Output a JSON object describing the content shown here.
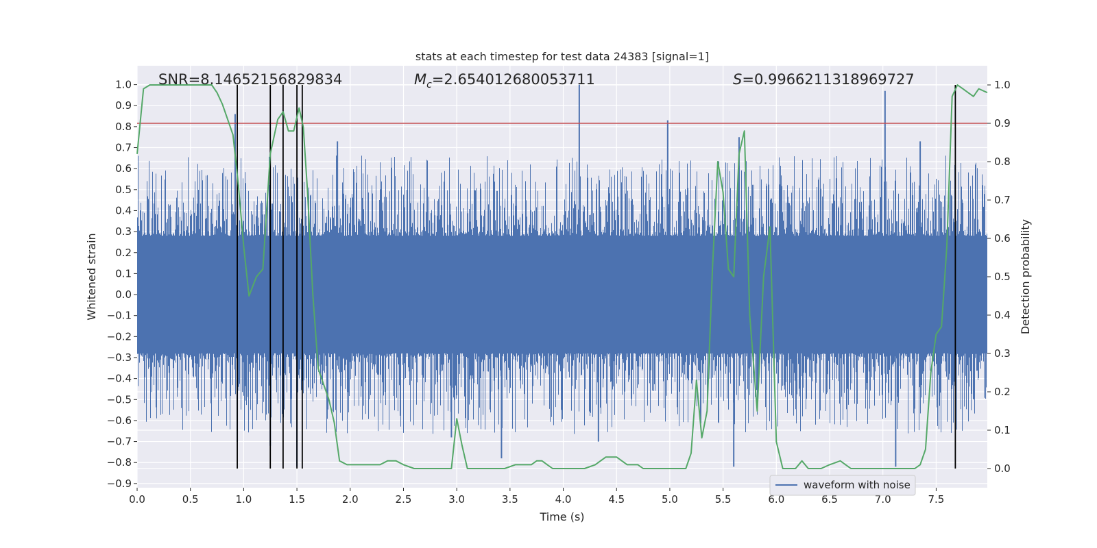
{
  "chart_data": {
    "type": "line",
    "title": "stats at each timestep for test data 24383 [signal=1]",
    "xlabel": "Time (s)",
    "ylabel": "Whitened strain",
    "ylabel_right": "Detection probability",
    "xlim": [
      0.0,
      7.98
    ],
    "ylim": [
      -0.92,
      1.09
    ],
    "ylim_right": [
      -0.05,
      1.05
    ],
    "xticks": [
      "0.0",
      "0.5",
      "1.0",
      "1.5",
      "2.0",
      "2.5",
      "3.0",
      "3.5",
      "4.0",
      "4.5",
      "5.0",
      "5.5",
      "6.0",
      "6.5",
      "7.0",
      "7.5"
    ],
    "xtick_values": [
      0.0,
      0.5,
      1.0,
      1.5,
      2.0,
      2.5,
      3.0,
      3.5,
      4.0,
      4.5,
      5.0,
      5.5,
      6.0,
      6.5,
      7.0,
      7.5
    ],
    "yticks": [
      "1.0",
      "0.9",
      "0.8",
      "0.7",
      "0.6",
      "0.5",
      "0.4",
      "0.3",
      "0.2",
      "0.1",
      "0.0",
      "−0.1",
      "−0.2",
      "−0.3",
      "−0.4",
      "−0.5",
      "−0.6",
      "−0.7",
      "−0.8",
      "−0.9"
    ],
    "ytick_values": [
      1.0,
      0.9,
      0.8,
      0.7,
      0.6,
      0.5,
      0.4,
      0.3,
      0.2,
      0.1,
      0.0,
      -0.1,
      -0.2,
      -0.3,
      -0.4,
      -0.5,
      -0.6,
      -0.7,
      -0.8,
      -0.9
    ],
    "yticks_right": [
      "1.0",
      "0.9",
      "0.8",
      "0.7",
      "0.6",
      "0.5",
      "0.4",
      "0.3",
      "0.2",
      "0.1",
      "0.0"
    ],
    "ytick_values_right": [
      1.0,
      0.9,
      0.8,
      0.7,
      0.6,
      0.5,
      0.4,
      0.3,
      0.2,
      0.1,
      0.0
    ],
    "annotations": {
      "snr": "SNR=8.14652156829834",
      "mc_symbol": "M",
      "mc_sub": "c",
      "mc_value": "=2.654012680053711",
      "s_symbol": "S",
      "s_value": "=0.9966211318969727"
    },
    "legend": {
      "label": "waveform with noise",
      "position": "lower-right"
    },
    "waveform": {
      "name": "waveform with noise",
      "color": "#4c72b0",
      "core_amplitude": 0.28,
      "typical_peak": 0.6,
      "max_peak": 1.0,
      "spikes": [
        {
          "t": 0.92,
          "v": 0.86
        },
        {
          "t": 0.94,
          "v": -0.7
        },
        {
          "t": 1.25,
          "v": -0.72
        },
        {
          "t": 1.5,
          "v": -0.82
        },
        {
          "t": 1.88,
          "v": 0.73
        },
        {
          "t": 2.95,
          "v": -0.68
        },
        {
          "t": 3.42,
          "v": -0.78
        },
        {
          "t": 4.15,
          "v": 1.0
        },
        {
          "t": 4.33,
          "v": -0.7
        },
        {
          "t": 4.98,
          "v": 0.83
        },
        {
          "t": 5.6,
          "v": -0.82
        },
        {
          "t": 5.65,
          "v": 0.75
        },
        {
          "t": 7.02,
          "v": 0.97
        },
        {
          "t": 7.12,
          "v": -0.82
        },
        {
          "t": 7.35,
          "v": 0.73
        }
      ]
    },
    "detection_probability": {
      "name": "Detection probability",
      "color": "#55a868",
      "x": [
        0.0,
        0.06,
        0.12,
        0.2,
        0.3,
        0.4,
        0.5,
        0.6,
        0.7,
        0.75,
        0.8,
        0.85,
        0.9,
        0.95,
        1.0,
        1.05,
        1.12,
        1.18,
        1.25,
        1.32,
        1.37,
        1.42,
        1.47,
        1.52,
        1.56,
        1.6,
        1.65,
        1.7,
        1.75,
        1.8,
        1.85,
        1.9,
        1.97,
        2.05,
        2.13,
        2.2,
        2.28,
        2.35,
        2.43,
        2.5,
        2.6,
        2.7,
        2.8,
        2.9,
        2.95,
        3.0,
        3.05,
        3.1,
        3.15,
        3.25,
        3.35,
        3.45,
        3.55,
        3.65,
        3.7,
        3.75,
        3.8,
        3.85,
        3.9,
        4.0,
        4.1,
        4.2,
        4.3,
        4.35,
        4.4,
        4.5,
        4.55,
        4.6,
        4.7,
        4.75,
        4.8,
        4.9,
        5.0,
        5.1,
        5.15,
        5.2,
        5.25,
        5.3,
        5.35,
        5.4,
        5.45,
        5.5,
        5.55,
        5.6,
        5.65,
        5.7,
        5.75,
        5.82,
        5.88,
        5.94,
        6.0,
        6.06,
        6.12,
        6.18,
        6.24,
        6.3,
        6.36,
        6.42,
        6.5,
        6.6,
        6.65,
        6.7,
        6.8,
        6.9,
        7.0,
        7.1,
        7.2,
        7.3,
        7.35,
        7.4,
        7.45,
        7.5,
        7.55,
        7.6,
        7.65,
        7.7,
        7.75,
        7.8,
        7.85,
        7.9,
        7.98
      ],
      "y": [
        0.82,
        0.99,
        1.0,
        1.0,
        1.0,
        1.0,
        1.0,
        1.0,
        1.0,
        0.98,
        0.95,
        0.91,
        0.87,
        0.74,
        0.58,
        0.45,
        0.5,
        0.52,
        0.82,
        0.91,
        0.93,
        0.88,
        0.88,
        0.94,
        0.89,
        0.72,
        0.45,
        0.26,
        0.22,
        0.18,
        0.12,
        0.02,
        0.01,
        0.01,
        0.01,
        0.01,
        0.01,
        0.02,
        0.02,
        0.01,
        0.0,
        0.0,
        0.0,
        0.0,
        0.0,
        0.13,
        0.06,
        0.0,
        0.0,
        0.0,
        0.0,
        0.0,
        0.01,
        0.01,
        0.01,
        0.02,
        0.02,
        0.01,
        0.0,
        0.0,
        0.0,
        0.0,
        0.01,
        0.02,
        0.03,
        0.03,
        0.02,
        0.01,
        0.01,
        0.0,
        0.0,
        0.0,
        0.0,
        0.0,
        0.0,
        0.04,
        0.23,
        0.08,
        0.15,
        0.52,
        0.8,
        0.72,
        0.52,
        0.5,
        0.82,
        0.88,
        0.4,
        0.15,
        0.5,
        0.63,
        0.07,
        0.0,
        0.0,
        0.0,
        0.02,
        0.0,
        0.0,
        0.0,
        0.01,
        0.02,
        0.01,
        0.0,
        0.0,
        0.0,
        0.0,
        0.0,
        0.0,
        0.0,
        0.01,
        0.05,
        0.25,
        0.35,
        0.37,
        0.58,
        0.97,
        1.0,
        0.99,
        0.98,
        0.97,
        0.99,
        0.98
      ]
    },
    "threshold": {
      "color": "#c44e52",
      "value_right": 0.9
    },
    "vertical_lines": {
      "color": "#000000",
      "x": [
        0.94,
        1.25,
        1.37,
        1.5,
        1.55,
        7.68
      ]
    }
  }
}
